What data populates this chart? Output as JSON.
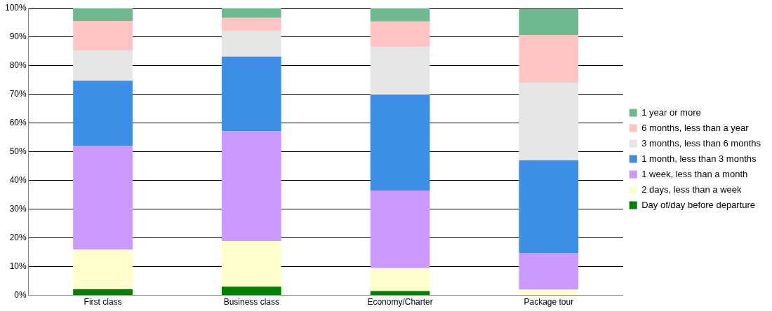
{
  "chart_data": {
    "type": "bar",
    "stacked": true,
    "categories": [
      "First class",
      "Business class",
      "Economy/Charter",
      "Package tour"
    ],
    "series": [
      {
        "name": "Day of/day before departure",
        "color": "#008000",
        "values": [
          2.1,
          3.0,
          1.5,
          null
        ]
      },
      {
        "name": "2 days, less than a week",
        "color": "#ffffcc",
        "values": [
          13.8,
          15.9,
          8.0,
          2.0
        ]
      },
      {
        "name": "1 week, less than a month",
        "color": "#cc99ff",
        "values": [
          36.1,
          38.3,
          27.0,
          12.8
        ]
      },
      {
        "name": "1 month, less than 3 months",
        "color": "#3d8ee6",
        "values": [
          22.8,
          26.0,
          33.5,
          32.3
        ]
      },
      {
        "name": "3 months, less than 6 months",
        "color": "#e6e6e6",
        "values": [
          10.4,
          8.8,
          16.5,
          27.0
        ]
      },
      {
        "name": "6 months, less than a year",
        "color": "#ffc4c4",
        "values": [
          10.4,
          4.7,
          8.9,
          16.6
        ]
      },
      {
        "name": "1 year or more",
        "color": "#6fb890",
        "values": [
          4.4,
          3.3,
          4.6,
          9.1
        ]
      }
    ],
    "ylim": [
      0,
      100
    ],
    "yticks": [
      {
        "value": 0,
        "label": "0%"
      },
      {
        "value": 10,
        "label": "10%"
      },
      {
        "value": 20,
        "label": "20%"
      },
      {
        "value": 30,
        "label": "30%"
      },
      {
        "value": 40,
        "label": "40%"
      },
      {
        "value": 50,
        "label": "50%"
      },
      {
        "value": 60,
        "label": "60%"
      },
      {
        "value": 70,
        "label": "70%"
      },
      {
        "value": 80,
        "label": "80%"
      },
      {
        "value": 90,
        "label": "90%"
      },
      {
        "value": 100,
        "label": "100%"
      }
    ],
    "grid": "y",
    "legend": "right"
  }
}
